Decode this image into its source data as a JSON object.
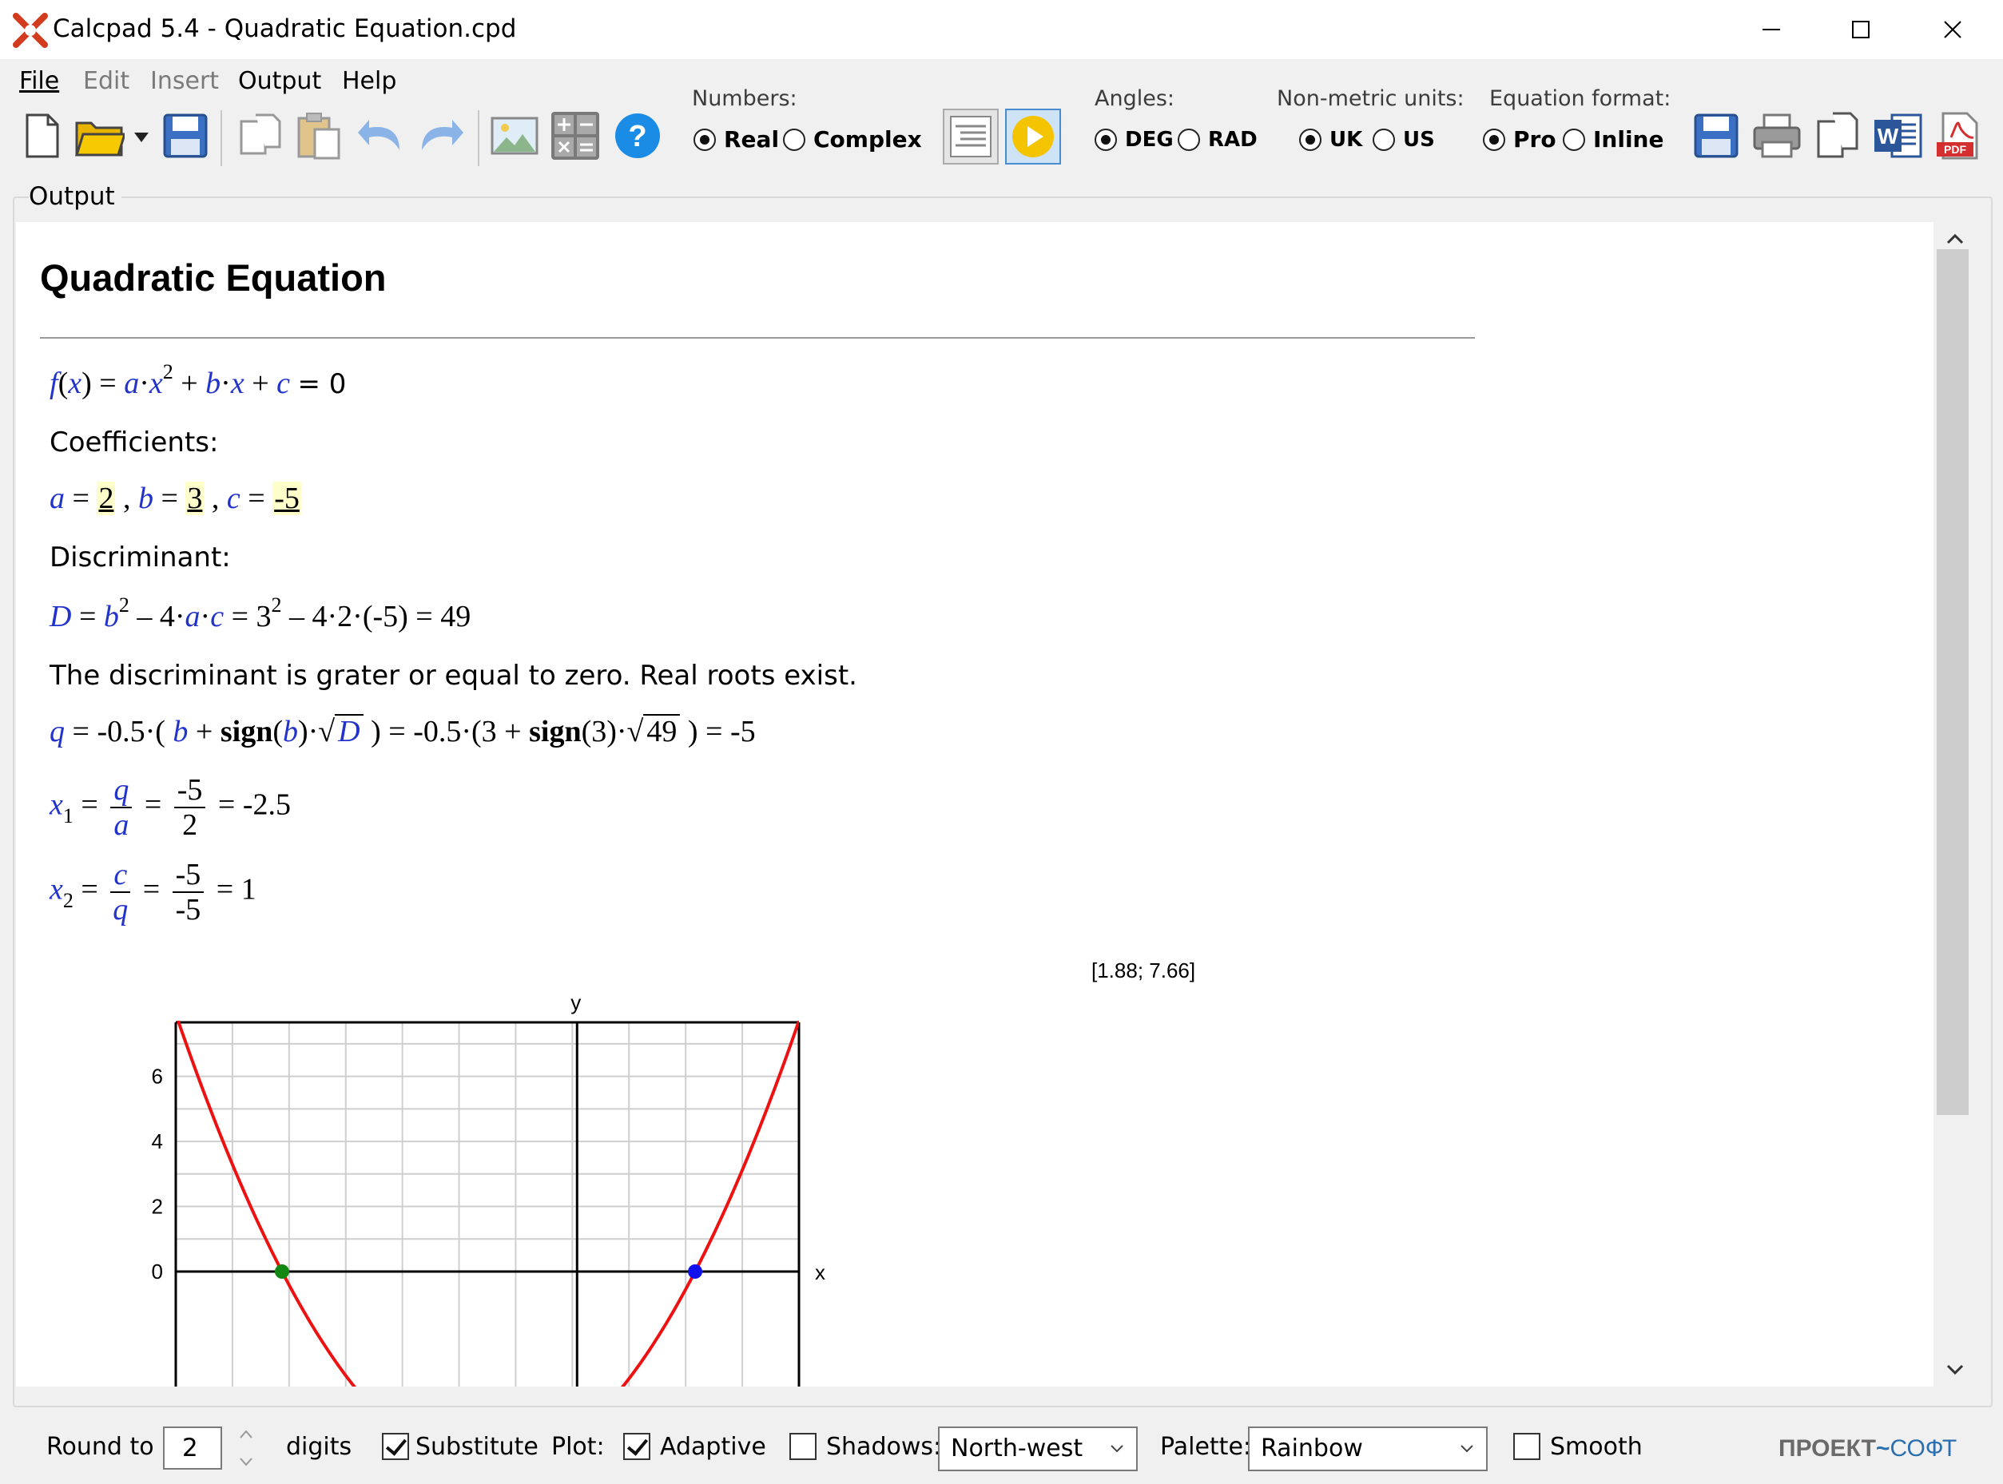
{
  "window": {
    "title": "Calcpad 5.4 - Quadratic Equation.cpd"
  },
  "menu": {
    "items": [
      "File",
      "Edit",
      "Insert",
      "Output",
      "Help"
    ]
  },
  "toolbar": {
    "numbers": {
      "label": "Numbers:",
      "options": [
        "Real",
        "Complex"
      ],
      "selected": "Real"
    },
    "angles": {
      "label": "Angles:",
      "options": [
        "DEG",
        "RAD"
      ],
      "selected": "DEG"
    },
    "units": {
      "label": "Non-metric units:",
      "options": [
        "UK",
        "US"
      ],
      "selected": "UK"
    },
    "eqformat": {
      "label": "Equation format:",
      "options": [
        "Pro",
        "Inline"
      ],
      "selected": "Pro"
    },
    "icons": [
      "new-file-icon",
      "open-folder-icon",
      "save-icon",
      "copy-icon",
      "paste-icon",
      "undo-icon",
      "redo-icon",
      "image-icon",
      "calculator-icon",
      "help-icon",
      "output-form-icon",
      "run-icon",
      "save-output-icon",
      "print-icon",
      "copy-output-icon",
      "word-icon",
      "pdf-icon"
    ]
  },
  "output": {
    "group_label": "Output",
    "title": "Quadratic Equation",
    "equation": {
      "lhs": "f(x)",
      "rhs": "= 0"
    },
    "coef_heading": "Coefficients:",
    "coefficients": {
      "a": "2",
      "b": "3",
      "c": "-5"
    },
    "disc_heading": "Discriminant:",
    "disc_result": "49",
    "disc_note": "The discriminant is grater or equal to zero. Real roots exist.",
    "q": {
      "coef": "-0.5",
      "sign": "sign",
      "sub_b": "3",
      "sub_D": "49",
      "result": "-5"
    },
    "x1": {
      "num": "-5",
      "den": "2",
      "result": "-2.5"
    },
    "x2": {
      "num": "-5",
      "den": "-5",
      "result": "1"
    },
    "plot_coord": "[1.88; 7.66]"
  },
  "chart_data": {
    "type": "line",
    "title": "",
    "xlabel": "x",
    "ylabel": "y",
    "xlim": [
      -3.4,
      1.88
    ],
    "ylim": [
      -0.5,
      7.66
    ],
    "y_ticks": [
      "0",
      "2",
      "4",
      "6"
    ],
    "grid": true,
    "series": [
      {
        "function": "2x^2 + 3x - 5",
        "color": "#ee1111"
      }
    ],
    "points": [
      {
        "x": -2.5,
        "y": 0,
        "color": "#118811"
      },
      {
        "x": 1,
        "y": 0,
        "color": "#1111ee"
      }
    ]
  },
  "bottom": {
    "round_label": "Round to",
    "round_value": "2",
    "digits_label": "digits",
    "substitute_label": "Substitute",
    "substitute_checked": true,
    "plot_label": "Plot:",
    "adaptive_label": "Adaptive",
    "adaptive_checked": true,
    "shadows_label": "Shadows:",
    "shadows_checked": false,
    "shadow_dir": "North-west",
    "palette_label": "Palette:",
    "palette": "Rainbow",
    "smooth_label": "Smooth",
    "smooth_checked": false,
    "brand": "ПРОЕКТ",
    "brand2": "СОФТ"
  }
}
